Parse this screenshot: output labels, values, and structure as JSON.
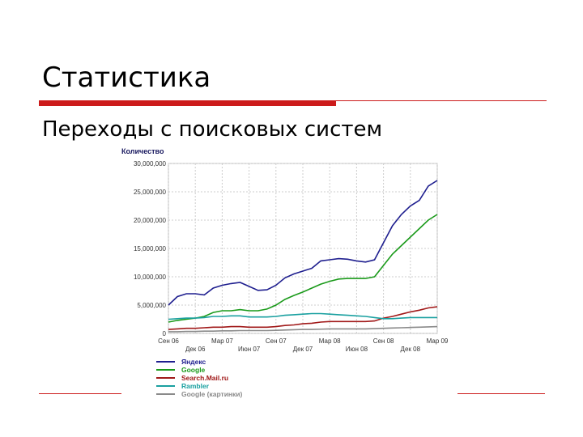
{
  "slide": {
    "title": "Статистика",
    "subtitle": "Переходы с поисковых систем"
  },
  "colors": {
    "accent": "#cc1b1b"
  },
  "chart_data": {
    "type": "line",
    "ylabel": "Количество",
    "ylim": [
      0,
      30000
    ],
    "y_ticks": [
      0,
      5000,
      10000,
      15000,
      20000,
      25000,
      30000
    ],
    "y_tick_labels": [
      "0",
      "5,000,000",
      "10,000,000",
      "15,000,000",
      "20,000,000",
      "25,000,000",
      "30,000,000"
    ],
    "x_ticks_top": [
      "Сен 06",
      "Мар 07",
      "Сен 07",
      "Мар 08",
      "Сен 08",
      "Мар 09"
    ],
    "x_ticks_bottom": [
      "Дек 06",
      "Июн 07",
      "Дек 07",
      "Июн 08",
      "Дек 08"
    ],
    "x_range": [
      0,
      30
    ],
    "grid": true,
    "legend_position": "bottom",
    "series": [
      {
        "name": "Яндекс",
        "color": "#1f1f8f",
        "values": [
          5000,
          6500,
          7000,
          7000,
          6800,
          8000,
          8500,
          8800,
          9000,
          8300,
          7600,
          7700,
          8500,
          9800,
          10500,
          11000,
          11500,
          12800,
          13000,
          13200,
          13100,
          12800,
          12600,
          13000,
          16000,
          19000,
          21000,
          22500,
          23500,
          26000,
          27000
        ]
      },
      {
        "name": "Google",
        "color": "#1a9a1a",
        "values": [
          2000,
          2300,
          2500,
          2700,
          3000,
          3700,
          4000,
          4000,
          4200,
          4000,
          4000,
          4300,
          5000,
          6000,
          6700,
          7300,
          8000,
          8700,
          9200,
          9600,
          9700,
          9700,
          9700,
          10000,
          12000,
          14000,
          15500,
          17000,
          18500,
          20000,
          21000
        ]
      },
      {
        "name": "Search.Mail.ru",
        "color": "#a01818",
        "values": [
          700,
          800,
          900,
          900,
          1000,
          1100,
          1100,
          1200,
          1200,
          1100,
          1100,
          1100,
          1200,
          1400,
          1500,
          1700,
          1800,
          2000,
          2100,
          2100,
          2100,
          2100,
          2100,
          2200,
          2700,
          3000,
          3400,
          3800,
          4100,
          4500,
          4700
        ]
      },
      {
        "name": "Rambler",
        "color": "#1aa0a0",
        "values": [
          2500,
          2600,
          2700,
          2700,
          2800,
          3000,
          3000,
          3100,
          3100,
          2900,
          2900,
          2900,
          3000,
          3200,
          3300,
          3400,
          3500,
          3500,
          3400,
          3300,
          3200,
          3100,
          3000,
          2800,
          2600,
          2600,
          2700,
          2800,
          2800,
          2800,
          2800
        ]
      },
      {
        "name": "Google (картинки)",
        "color": "#8a8a8a",
        "values": [
          300,
          300,
          350,
          350,
          400,
          400,
          450,
          450,
          500,
          500,
          500,
          500,
          550,
          600,
          650,
          700,
          700,
          750,
          800,
          800,
          800,
          800,
          800,
          850,
          900,
          950,
          1000,
          1050,
          1100,
          1150,
          1200
        ]
      }
    ]
  }
}
